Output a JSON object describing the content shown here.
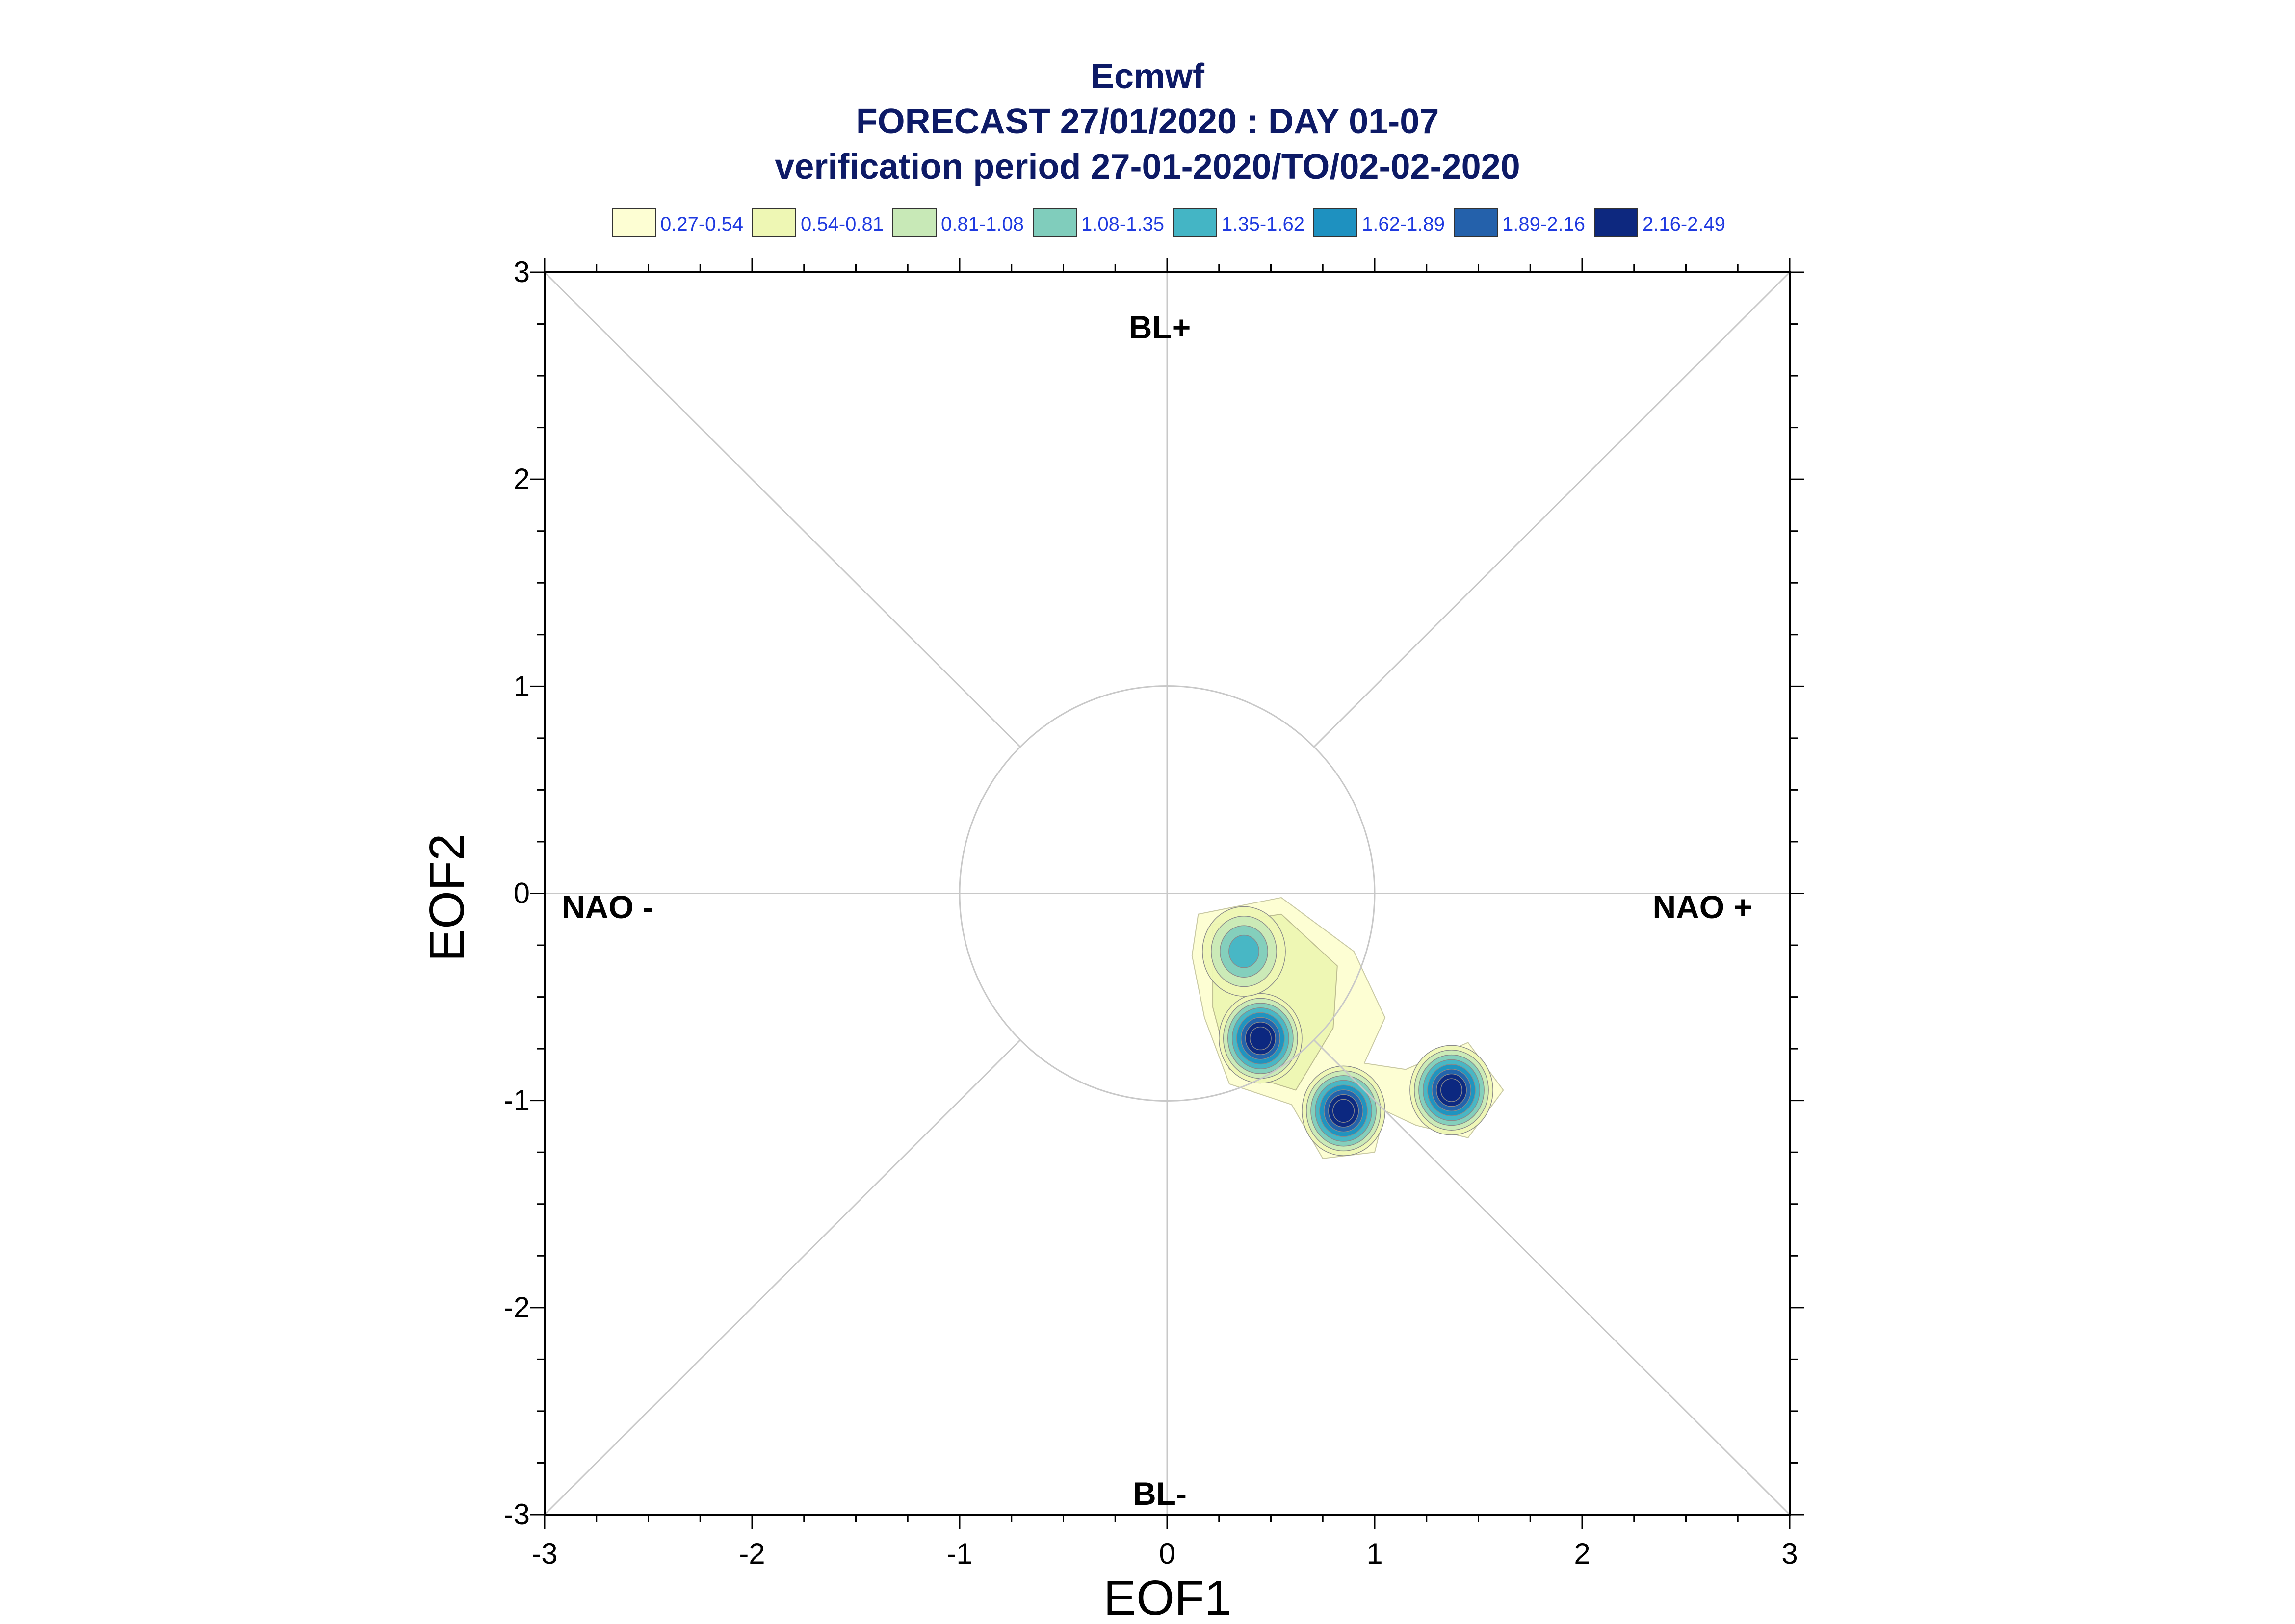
{
  "chart_data": {
    "type": "contour",
    "title": [
      "Ecmwf",
      "FORECAST 27/01/2020 : DAY 01-07",
      "verification period 27-01-2020/TO/02-02-2020"
    ],
    "xlabel": "EOF1",
    "ylabel": "EOF2",
    "xlim": [
      -3,
      3
    ],
    "ylim": [
      -3,
      3
    ],
    "xticks": [
      "-3",
      "-2",
      "-1",
      "0",
      "1",
      "2",
      "3"
    ],
    "yticks": [
      "-3",
      "-2",
      "-1",
      "0",
      "1",
      "2",
      "3"
    ],
    "reference_circle_radius": 1,
    "diagonals": true,
    "region_labels": {
      "top": "BL+",
      "bottom": "BL-",
      "left": "NAO -",
      "right": "NAO +"
    },
    "legend": {
      "position": "top",
      "entries": [
        {
          "label": "0.27-0.54",
          "color": "#fdfed3"
        },
        {
          "label": "0.54-0.81",
          "color": "#eef7b4"
        },
        {
          "label": "0.81-1.08",
          "color": "#c8e9b7"
        },
        {
          "label": "1.08-1.35",
          "color": "#80cdbc"
        },
        {
          "label": "1.35-1.62",
          "color": "#44b5c5"
        },
        {
          "label": "1.62-1.89",
          "color": "#1e91c0"
        },
        {
          "label": "1.89-2.16",
          "color": "#2461ab"
        },
        {
          "label": "2.16-2.49",
          "color": "#0d287f"
        }
      ]
    },
    "density_centers": [
      {
        "x": 0.45,
        "y": -0.7,
        "peak": 2.4
      },
      {
        "x": 0.85,
        "y": -1.05,
        "peak": 2.3
      },
      {
        "x": 1.37,
        "y": -0.95,
        "peak": 2.3
      },
      {
        "x": 0.37,
        "y": -0.28,
        "peak": 1.3
      }
    ]
  }
}
